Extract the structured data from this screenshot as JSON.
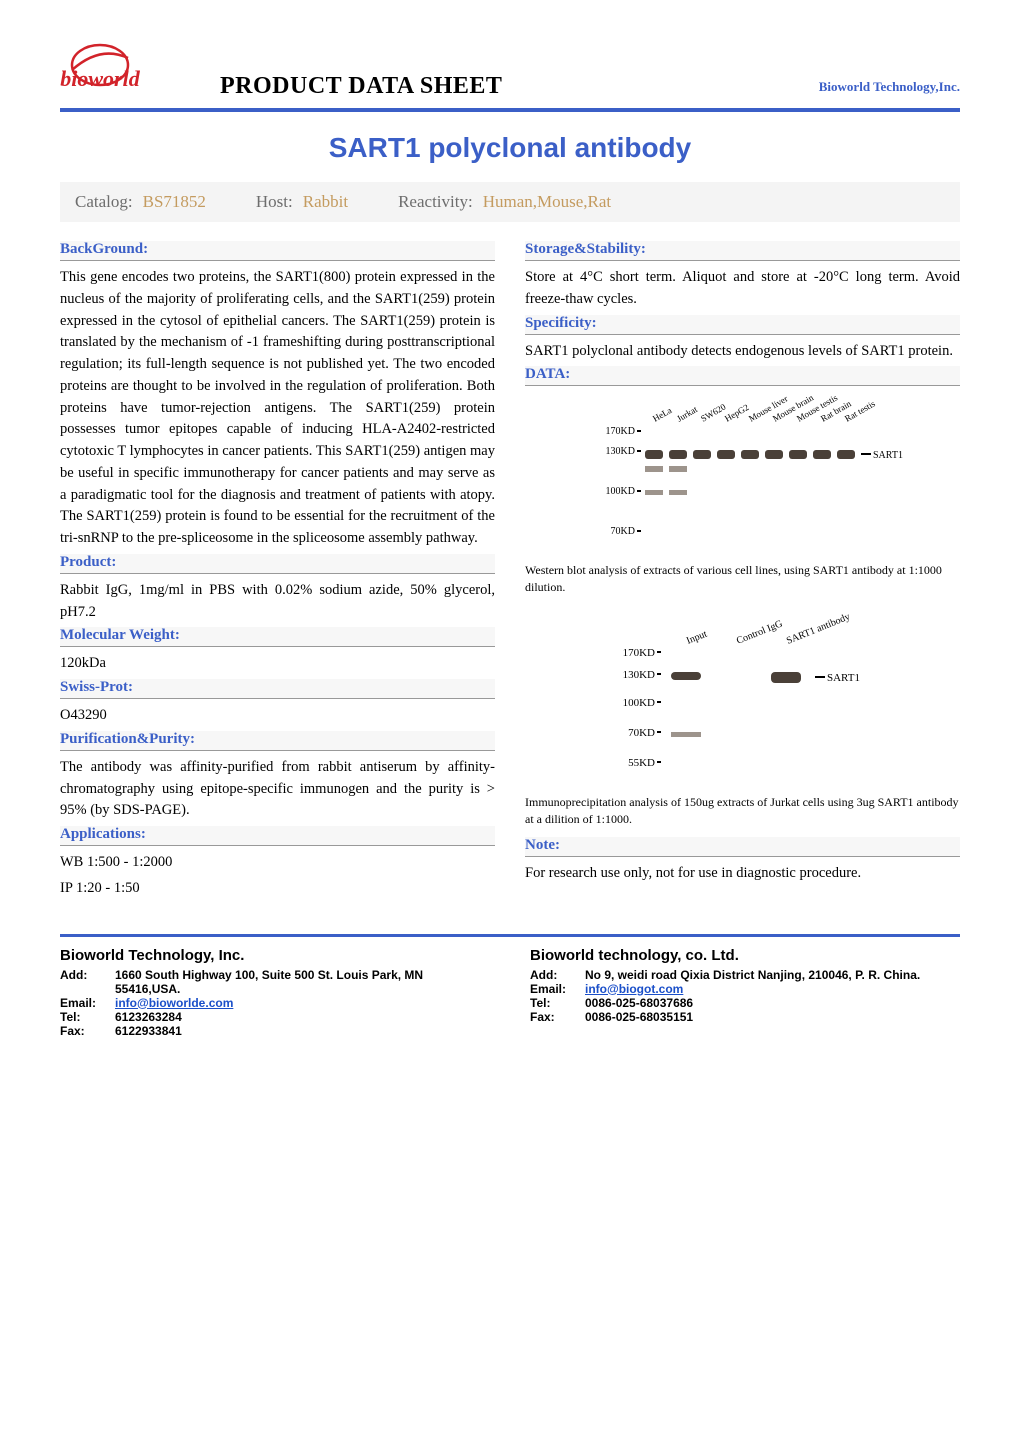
{
  "header": {
    "logo_text": "bioworld",
    "logo_fill": "#d2232a",
    "sheet_title": "PRODUCT DATA SHEET",
    "company": "Bioworld Technology,Inc."
  },
  "product_title": "SART1 polyclonal antibody",
  "meta": {
    "catalog_label": "Catalog:",
    "catalog_value": "BS71852",
    "host_label": "Host:",
    "host_value": "Rabbit",
    "reactivity_label": "Reactivity:",
    "reactivity_value": "Human,Mouse,Rat"
  },
  "left": {
    "background_label": "BackGround:",
    "background_text": "This gene encodes two proteins, the SART1(800) protein expressed in the nucleus of the majority of proliferating cells, and the SART1(259) protein expressed in the cytosol of epithelial cancers. The SART1(259) protein is translated by the mechanism of -1 frameshifting during posttranscriptional regulation; its full-length sequence is not published yet. The two encoded proteins are thought to be involved in the regulation of proliferation. Both proteins have tumor-rejection antigens. The SART1(259) protein possesses tumor epitopes capable of inducing HLA-A2402-restricted cytotoxic T lymphocytes in cancer patients. This SART1(259) antigen may be useful in specific immunotherapy for cancer patients and may serve as a paradigmatic tool for the diagnosis and treatment of patients with atopy. The SART1(259) protein is found to be essential for the recruitment of the tri-snRNP to the pre-spliceosome in the spliceosome assembly pathway.",
    "product_label": "Product:",
    "product_text": "Rabbit IgG, 1mg/ml in PBS with 0.02% sodium azide, 50% glycerol, pH7.2",
    "mw_label": "Molecular Weight:",
    "mw_text": "120kDa",
    "swiss_label": "Swiss-Prot:",
    "swiss_text": "O43290",
    "purity_label": "Purification&Purity:",
    "purity_text": "The antibody was affinity-purified from rabbit antiserum by affinity-chromatography using epitope-specific immunogen and the purity is > 95% (by SDS-PAGE).",
    "apps_label": "Applications:",
    "apps_line1": "WB  1:500 - 1:2000",
    "apps_line2": "IP    1:20 - 1:50"
  },
  "right": {
    "storage_label": "Storage&Stability:",
    "storage_text": "Store at 4°C short term. Aliquot and store at -20°C long term. Avoid freeze-thaw cycles.",
    "spec_label": "Specificity:",
    "spec_text": "SART1 polyclonal antibody detects endogenous levels of SART1 protein.",
    "data_label": "DATA:",
    "blot1": {
      "lanes": [
        "HeLa",
        "Jurkat",
        "SW620",
        "HepG2",
        "Mouse liver",
        "Mouse brain",
        "Mouse testis",
        "Rat brain",
        "Rat testis"
      ],
      "markers": [
        "170KD",
        "130KD",
        "100KD",
        "70KD"
      ],
      "band_label": "SART1",
      "caption": "Western blot analysis of extracts of various cell lines, using SART1 antibody at 1:1000 dilution."
    },
    "blot2": {
      "lanes": [
        "Input",
        "Control IgG",
        "SART1 antibody"
      ],
      "markers": [
        "170KD",
        "130KD",
        "100KD",
        "70KD",
        "55KD"
      ],
      "band_label": "SART1",
      "caption": "Immunoprecipitation analysis of 150ug extracts of Jurkat cells using 3ug SART1 antibody at a dilition of 1:1000."
    },
    "note_label": "Note:",
    "note_text": "For research use only, not for use in diagnostic procedure."
  },
  "footer": {
    "left": {
      "company": "Bioworld Technology, Inc.",
      "add_label": "Add:",
      "add": "1660 South Highway 100, Suite 500 St. Louis Park, MN 55416,USA.",
      "email_label": "Email:",
      "email": "info@bioworlde.com",
      "tel_label": "Tel:",
      "tel": "6123263284",
      "fax_label": "Fax:",
      "fax": "6122933841"
    },
    "right": {
      "company": "Bioworld technology, co. Ltd.",
      "add_label": "Add:",
      "add": "No 9, weidi road Qixia District Nanjing, 210046, P. R. China.",
      "email_label": "Email:",
      "email": "info@biogot.com",
      "tel_label": "Tel:",
      "tel": "0086-025-68037686",
      "fax_label": "Fax:",
      "fax": "0086-025-68035151"
    }
  },
  "colors": {
    "accent": "#3b5fc7",
    "meta_value": "#c49b5f",
    "band": "#4a4038",
    "band_light": "#9d948c"
  }
}
